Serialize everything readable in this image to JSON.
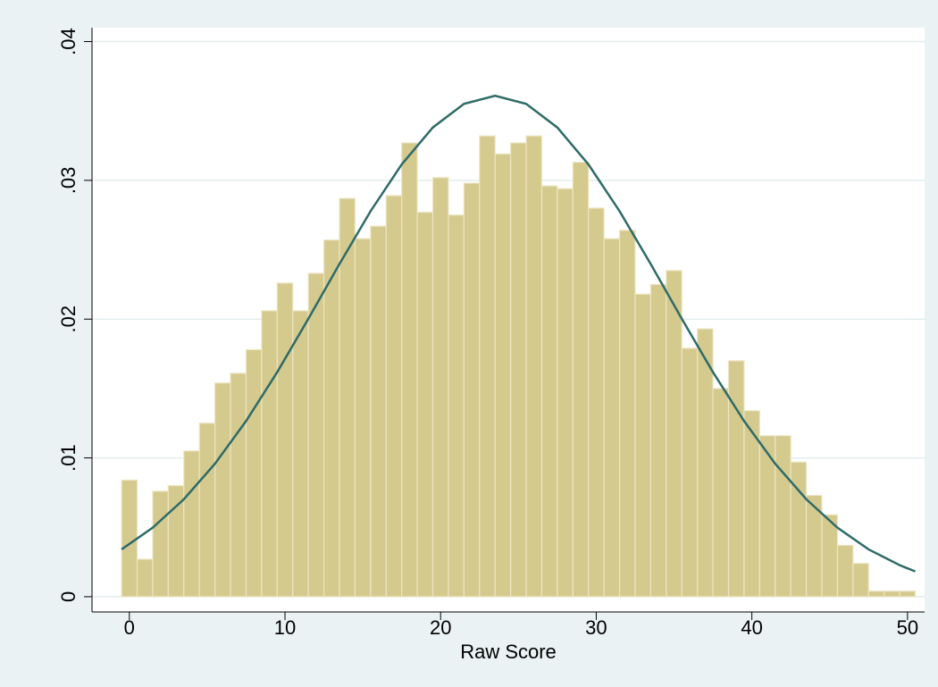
{
  "chart_data": {
    "type": "histogram",
    "xlabel": "Raw Score",
    "bins": [
      -0.5,
      0.5,
      1.5,
      2.5,
      3.5,
      4.5,
      5.5,
      6.5,
      7.5,
      8.5,
      9.5,
      10.5,
      11.5,
      12.5,
      13.5,
      14.5,
      15.5,
      16.5,
      17.5,
      18.5,
      19.5,
      20.5,
      21.5,
      22.5,
      23.5,
      24.5,
      25.5,
      26.5,
      27.5,
      28.5,
      29.5,
      30.5,
      31.5,
      32.5,
      33.5,
      34.5,
      35.5,
      36.5,
      37.5,
      38.5,
      39.5,
      40.5,
      41.5,
      42.5,
      43.5,
      44.5,
      45.5,
      46.5,
      47.5,
      48.5,
      49.5,
      50.5
    ],
    "values": [
      0.0084,
      0.0027,
      0.0076,
      0.008,
      0.0105,
      0.0125,
      0.0154,
      0.0161,
      0.0178,
      0.0206,
      0.0226,
      0.0206,
      0.0233,
      0.0257,
      0.0287,
      0.0258,
      0.0267,
      0.0289,
      0.0327,
      0.0277,
      0.0302,
      0.0275,
      0.0298,
      0.0332,
      0.0319,
      0.0327,
      0.0332,
      0.0296,
      0.0294,
      0.0313,
      0.028,
      0.0258,
      0.0264,
      0.0218,
      0.0225,
      0.0235,
      0.0179,
      0.0193,
      0.015,
      0.017,
      0.0134,
      0.0116,
      0.0116,
      0.0097,
      0.0073,
      0.0059,
      0.0037,
      0.0024,
      0.0004,
      0.0004,
      0.0004
    ],
    "color": "#d5ca8e",
    "curve": {
      "type": "line",
      "color": "#2e6b68",
      "x": [
        -0.5,
        1.5,
        3.5,
        5.5,
        7.5,
        9.5,
        11.5,
        13.5,
        15.5,
        17.5,
        19.5,
        21.5,
        23.5,
        25.5,
        27.5,
        29.5,
        31.5,
        33.5,
        35.5,
        37.5,
        39.5,
        41.5,
        43.5,
        45.5,
        47.5,
        49.5,
        50.5
      ],
      "values": [
        0.00341,
        0.00497,
        0.00702,
        0.00958,
        0.01266,
        0.01618,
        0.02002,
        0.02397,
        0.02778,
        0.03115,
        0.03381,
        0.03551,
        0.0361,
        0.03551,
        0.03381,
        0.03115,
        0.02778,
        0.02397,
        0.02002,
        0.01618,
        0.01266,
        0.00958,
        0.00702,
        0.00497,
        0.00341,
        0.00227,
        0.00182
      ]
    },
    "xlim": [
      -2.4,
      51.1
    ],
    "ylim": [
      -0.0011,
      0.041
    ],
    "xticks": [
      0,
      10,
      20,
      30,
      40,
      50
    ],
    "yticks": [
      0,
      {
        "value": 0.01,
        "label": ".01"
      },
      {
        "value": 0.02,
        "label": ".02"
      },
      {
        "value": 0.03,
        "label": ".03"
      },
      {
        "value": 0.04,
        "label": ".04"
      }
    ],
    "grid": true
  }
}
